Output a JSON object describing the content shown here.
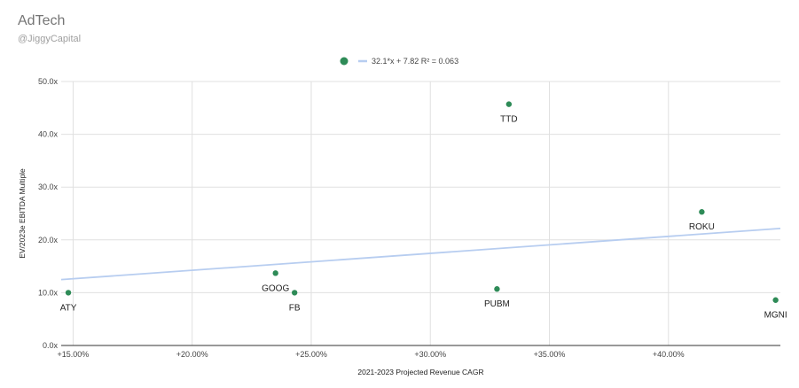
{
  "header": {
    "title": "AdTech",
    "subtitle": "@JiggyCapital"
  },
  "colors": {
    "point": "#2e8b57",
    "trendline": "#b7cdf0",
    "grid": "#e0e0e0",
    "axis": "#333333"
  },
  "chart_data": {
    "type": "scatter",
    "title": "AdTech",
    "xlabel": "2021-2023 Projected Revenue CAGR",
    "ylabel": "EV/2023e EBITDA Multiple",
    "xlim": [
      0.145,
      0.447
    ],
    "ylim": [
      0,
      50
    ],
    "x_ticks": [
      0.15,
      0.2,
      0.25,
      0.3,
      0.35,
      0.4
    ],
    "x_tick_labels": [
      "+15.00%",
      "+20.00%",
      "+25.00%",
      "+30.00%",
      "+35.00%",
      "+40.00%"
    ],
    "y_ticks": [
      0,
      10,
      20,
      30,
      40,
      50
    ],
    "y_tick_labels": [
      "0.0x",
      "10.0x",
      "20.0x",
      "30.0x",
      "40.0x",
      "50.0x"
    ],
    "grid": true,
    "points": [
      {
        "label": "ATY",
        "x": 0.148,
        "y": 10.0
      },
      {
        "label": "GOOG",
        "x": 0.235,
        "y": 13.7
      },
      {
        "label": "FB",
        "x": 0.243,
        "y": 10.0
      },
      {
        "label": "TTD",
        "x": 0.333,
        "y": 45.7
      },
      {
        "label": "PUBM",
        "x": 0.328,
        "y": 10.7
      },
      {
        "label": "ROKU",
        "x": 0.414,
        "y": 25.3
      },
      {
        "label": "MGNI",
        "x": 0.445,
        "y": 8.6
      }
    ],
    "trendline": {
      "slope": 32.1,
      "intercept": 7.82,
      "r2": 0.063,
      "equation_label": "32.1*x + 7.82 R² = 0.063"
    },
    "legend_position": "top-center"
  }
}
